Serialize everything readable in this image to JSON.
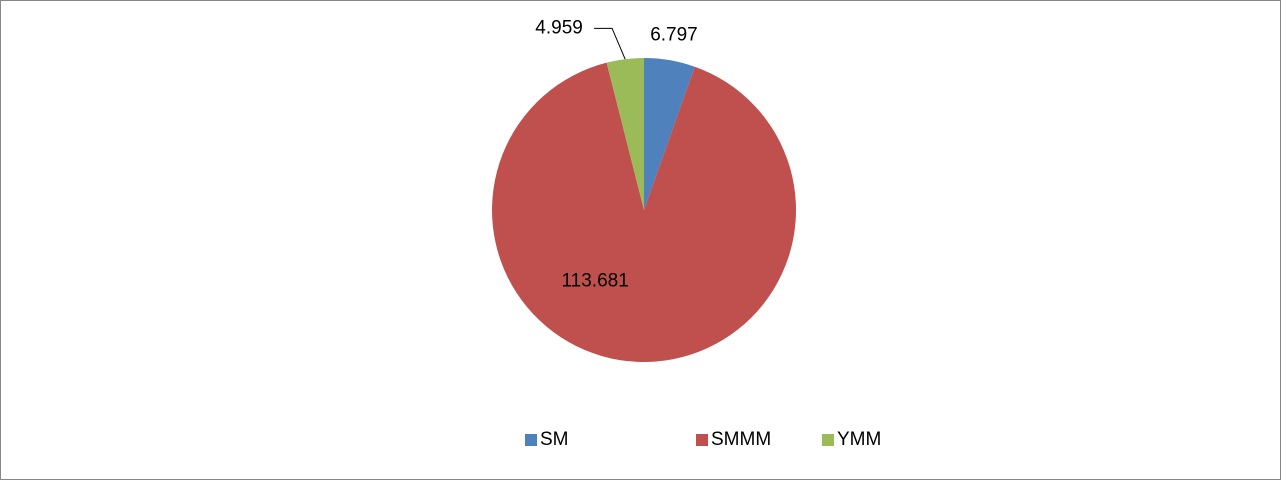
{
  "chart_data": {
    "type": "pie",
    "categories": [
      "SM",
      "SMMM",
      "YMM"
    ],
    "values": [
      6.797,
      113.681,
      4.959
    ],
    "colors": [
      "#4f81bd",
      "#c0504d",
      "#9bbb59"
    ],
    "legend": "bottom"
  }
}
